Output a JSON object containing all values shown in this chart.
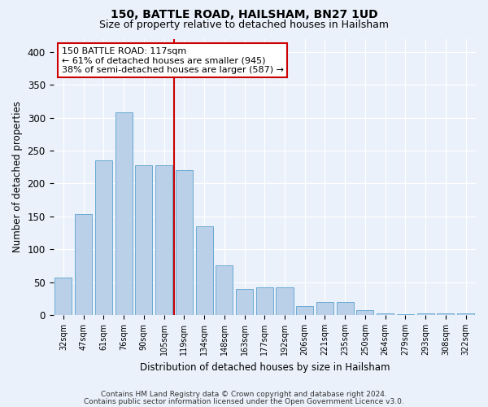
{
  "title": "150, BATTLE ROAD, HAILSHAM, BN27 1UD",
  "subtitle": "Size of property relative to detached houses in Hailsham",
  "xlabel": "Distribution of detached houses by size in Hailsham",
  "ylabel": "Number of detached properties",
  "categories": [
    "32sqm",
    "47sqm",
    "61sqm",
    "76sqm",
    "90sqm",
    "105sqm",
    "119sqm",
    "134sqm",
    "148sqm",
    "163sqm",
    "177sqm",
    "192sqm",
    "206sqm",
    "221sqm",
    "235sqm",
    "250sqm",
    "264sqm",
    "279sqm",
    "293sqm",
    "308sqm",
    "322sqm"
  ],
  "values": [
    57,
    153,
    235,
    308,
    228,
    228,
    220,
    135,
    75,
    40,
    42,
    42,
    14,
    20,
    20,
    7,
    2,
    1,
    2,
    3,
    2
  ],
  "bar_color": "#bad0e8",
  "bar_edge_color": "#6aaad4",
  "vline_x": 5.5,
  "vline_color": "#cc0000",
  "annotation_line1": "150 BATTLE ROAD: 117sqm",
  "annotation_line2": "← 61% of detached houses are smaller (945)",
  "annotation_line3": "38% of semi-detached houses are larger (587) →",
  "annotation_box_color": "#ffffff",
  "annotation_box_edge": "#cc0000",
  "ylim": [
    0,
    420
  ],
  "yticks": [
    0,
    50,
    100,
    150,
    200,
    250,
    300,
    350,
    400
  ],
  "footer1": "Contains HM Land Registry data © Crown copyright and database right 2024.",
  "footer2": "Contains public sector information licensed under the Open Government Licence v3.0.",
  "bg_color": "#eaf1fb",
  "plot_bg_color": "#eaf1fb",
  "title_fontsize": 10,
  "subtitle_fontsize": 9
}
